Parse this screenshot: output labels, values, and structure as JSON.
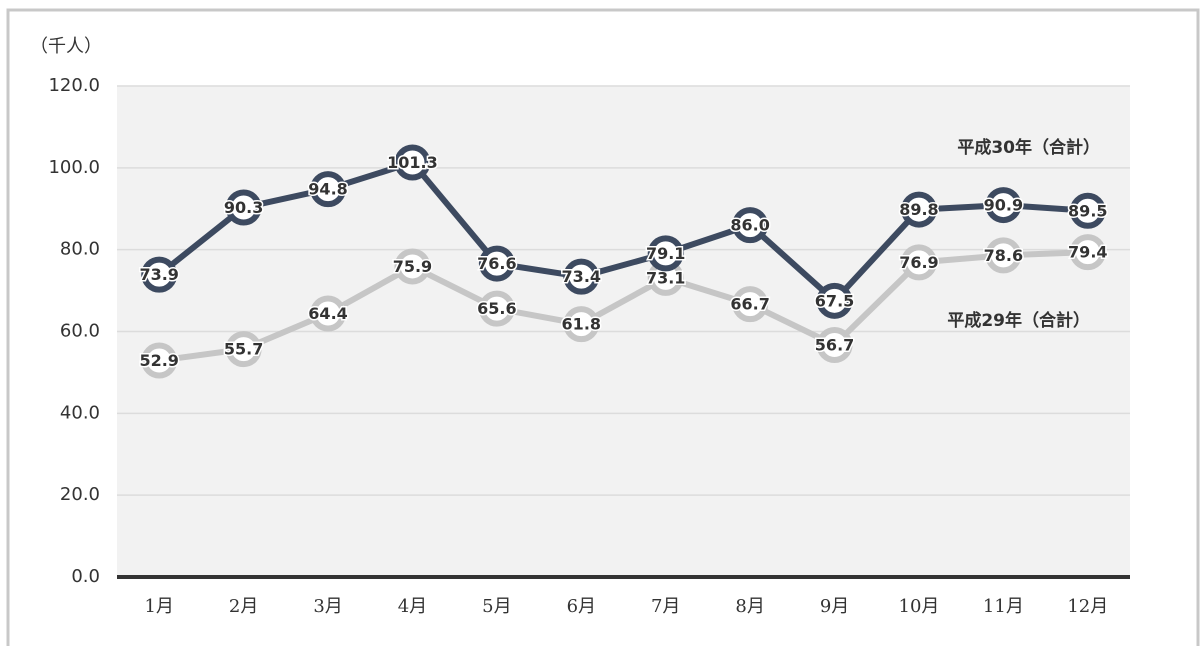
{
  "chart_data": {
    "type": "line",
    "y_label": "（千人）",
    "categories": [
      "1月",
      "2月",
      "3月",
      "4月",
      "5月",
      "6月",
      "7月",
      "8月",
      "9月",
      "10月",
      "11月",
      "12月"
    ],
    "series": [
      {
        "name": "平成30年（合計）",
        "color": "#3d4a60",
        "values": [
          73.9,
          90.3,
          94.8,
          101.3,
          76.6,
          73.4,
          79.1,
          86.0,
          67.5,
          89.8,
          90.9,
          89.5
        ],
        "value_labels": [
          "73.9",
          "90.3",
          "94.8",
          "101.3",
          "76.6",
          "73.4",
          "79.1",
          "86.0",
          "67.5",
          "89.8",
          "90.9",
          "89.5"
        ]
      },
      {
        "name": "平成29年（合計）",
        "color": "#c6c6c6",
        "values": [
          52.9,
          55.7,
          64.4,
          75.9,
          65.6,
          61.8,
          73.1,
          66.7,
          56.7,
          76.9,
          78.6,
          79.4
        ],
        "value_labels": [
          "52.9",
          "55.7",
          "64.4",
          "75.9",
          "65.6",
          "61.8",
          "73.1",
          "66.7",
          "56.7",
          "76.9",
          "78.6",
          "79.4"
        ]
      }
    ],
    "ylim": [
      0,
      120
    ],
    "yticks": [
      {
        "value": 0,
        "label": "0.0"
      },
      {
        "value": 20,
        "label": "20.0"
      },
      {
        "value": 40,
        "label": "40.0"
      },
      {
        "value": 60,
        "label": "60.0"
      },
      {
        "value": 80,
        "label": "80.0"
      },
      {
        "value": 100,
        "label": "100.0"
      },
      {
        "value": 120,
        "label": "120.0"
      }
    ],
    "grid": true
  }
}
